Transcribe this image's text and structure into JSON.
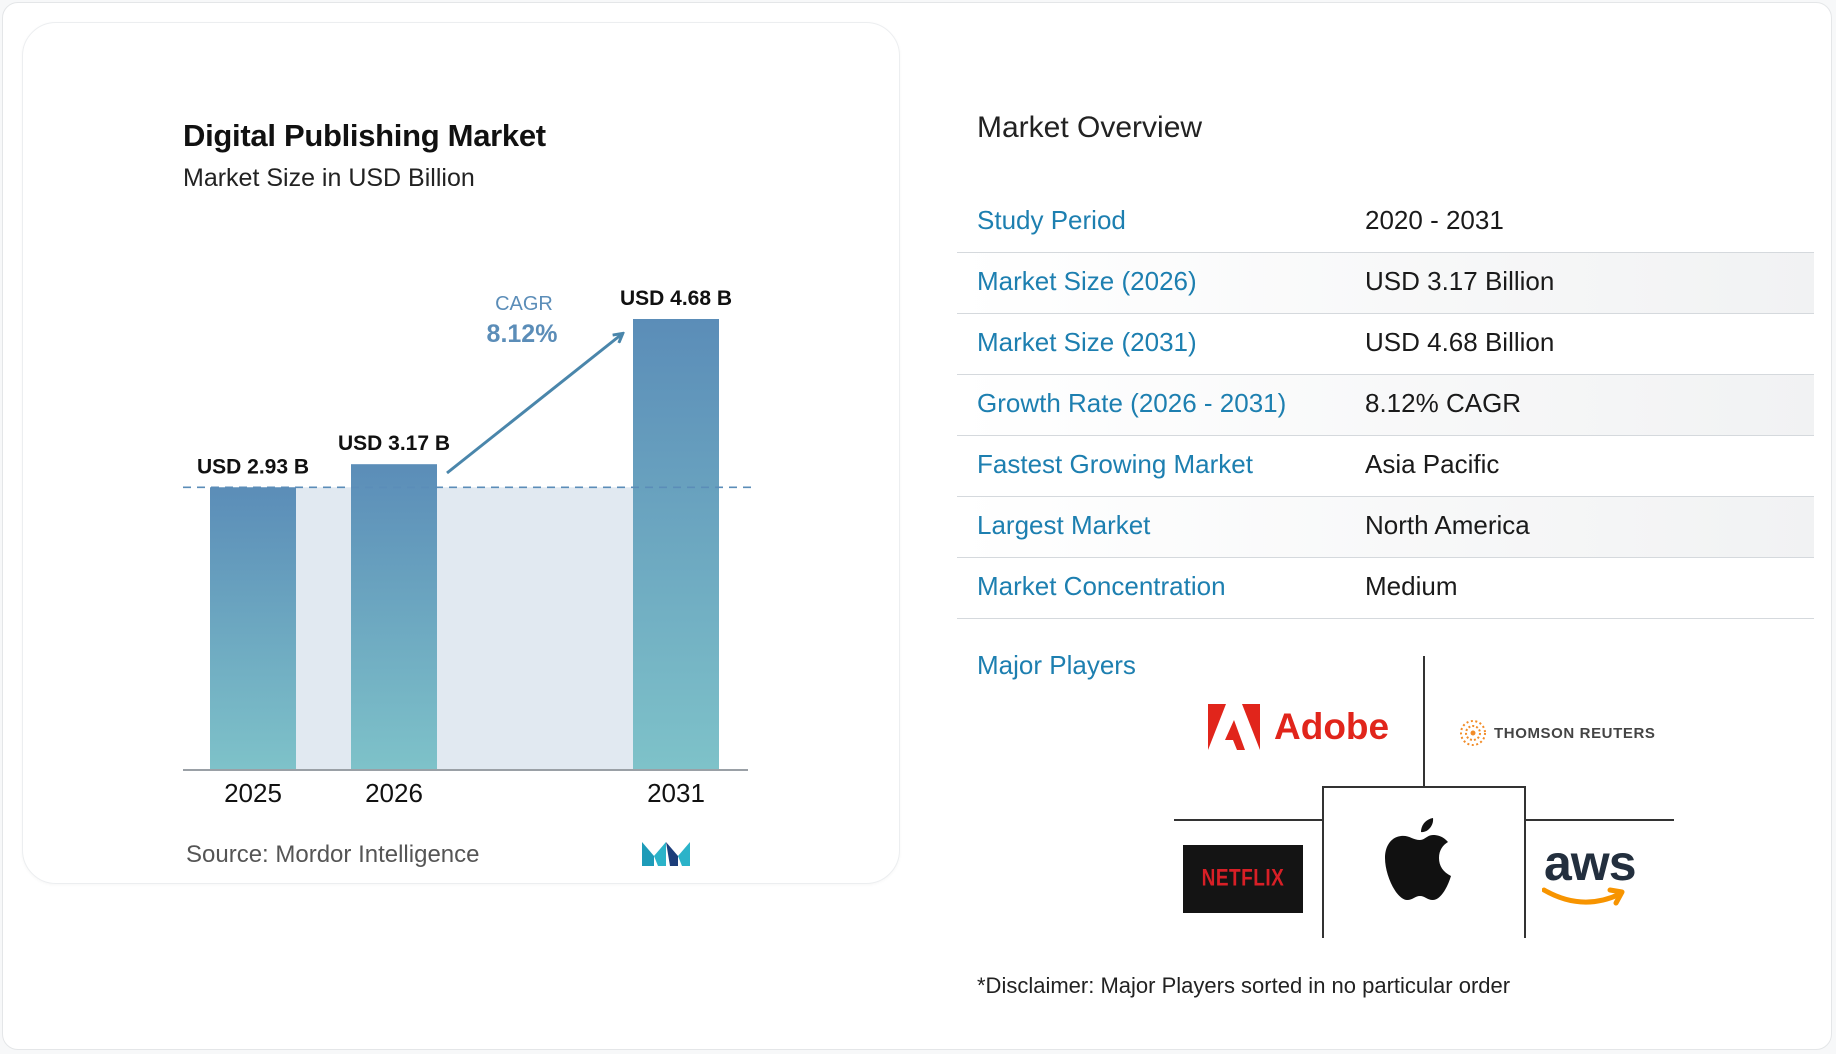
{
  "chart_data": {
    "type": "bar",
    "title": "Digital Publishing Market",
    "subtitle": "Market Size in USD Billion",
    "categories": [
      "2025",
      "2026",
      "2031"
    ],
    "values": [
      2.93,
      3.17,
      4.68
    ],
    "value_labels": [
      "USD 2.93 B",
      "USD 3.17 B",
      "USD 4.68 B"
    ],
    "cagr_label": "CAGR",
    "cagr_value": "8.12%",
    "ylim": [
      0,
      4.68
    ],
    "grid": false,
    "colors": {
      "bar_top": "#5b8db8",
      "bar_bottom": "#7ec2c9",
      "band": "#e1e9f1",
      "arrow": "#4a86ab"
    }
  },
  "source": "Source:  Mordor Intelligence",
  "overview": {
    "title": "Market Overview",
    "rows": [
      {
        "label": "Study Period",
        "value": "2020 - 2031"
      },
      {
        "label": "Market Size (2026)",
        "value": "USD 3.17 Billion"
      },
      {
        "label": "Market Size (2031)",
        "value": "USD 4.68 Billion"
      },
      {
        "label": "Growth Rate (2026 - 2031)",
        "value": "8.12% CAGR"
      },
      {
        "label": "Fastest Growing Market",
        "value": "Asia Pacific"
      },
      {
        "label": "Largest Market",
        "value": "North America"
      },
      {
        "label": "Market Concentration",
        "value": "Medium"
      }
    ]
  },
  "players": {
    "label": "Major Players",
    "logos": {
      "adobe": "Adobe",
      "thomson_reuters": "THOMSON REUTERS",
      "netflix": "NETFLIX",
      "apple": "apple-icon",
      "aws": "aws"
    }
  },
  "disclaimer": "*Disclaimer: Major Players sorted in no particular order"
}
